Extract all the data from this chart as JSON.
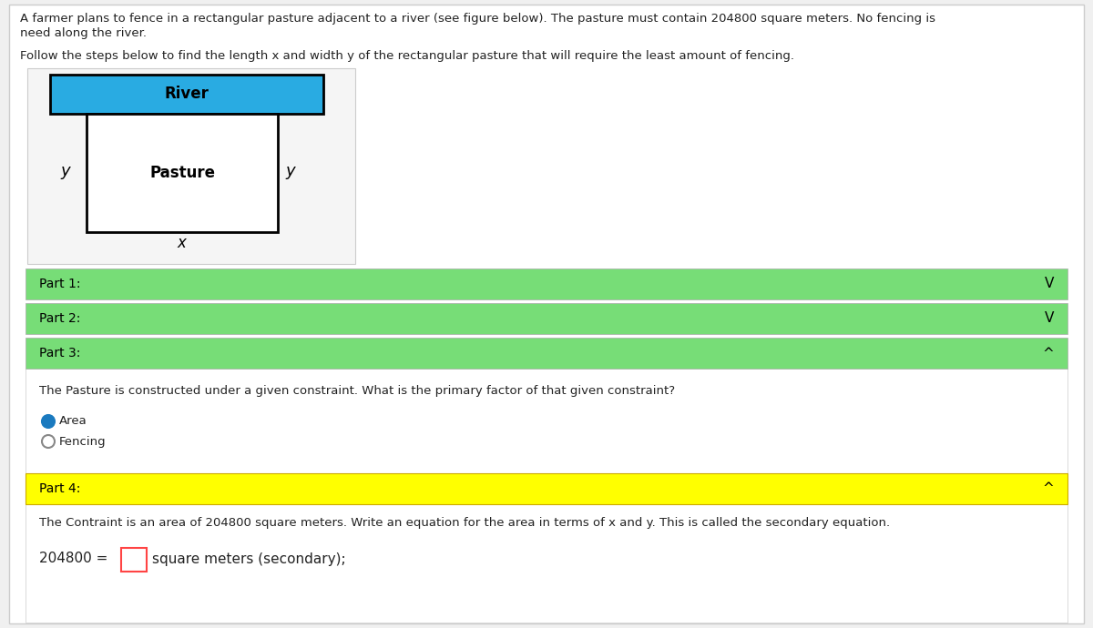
{
  "bg_color": "#f0f0f0",
  "white": "#ffffff",
  "green_color": "#77dd77",
  "yellow_color": "#ffff00",
  "blue_river": "#29abe2",
  "black": "#000000",
  "red_box": "#ff4444",
  "text_color": "#222222",
  "grey_panel": "#eeeeee",
  "header_line1": "A farmer plans to fence in a rectangular pasture adjacent to a river (see figure below). The pasture must contain 204800 square meters. No fencing is",
  "header_line2": "need along the river.",
  "header_line3": "Follow the steps below to find the length x and width y of the rectangular pasture that will require the least amount of fencing.",
  "river_label": "River",
  "pasture_label": "Pasture",
  "part1_label": "Part 1:",
  "part2_label": "Part 2:",
  "part3_label": "Part 3:",
  "part4_label": "Part 4:",
  "part3_question": "The Pasture is constructed under a given constraint. What is the primary factor of that given constraint?",
  "radio_option1": "Area",
  "radio_option2": "Fencing",
  "part4_question": "The Contraint is an area of 204800 square meters. Write an equation for the area in terms of x and y. This is called the secondary equation.",
  "part4_eq_left": "204800 =",
  "part4_eq_suffix": "square meters (secondary);",
  "chevron_down": "V",
  "chevron_up": "^"
}
